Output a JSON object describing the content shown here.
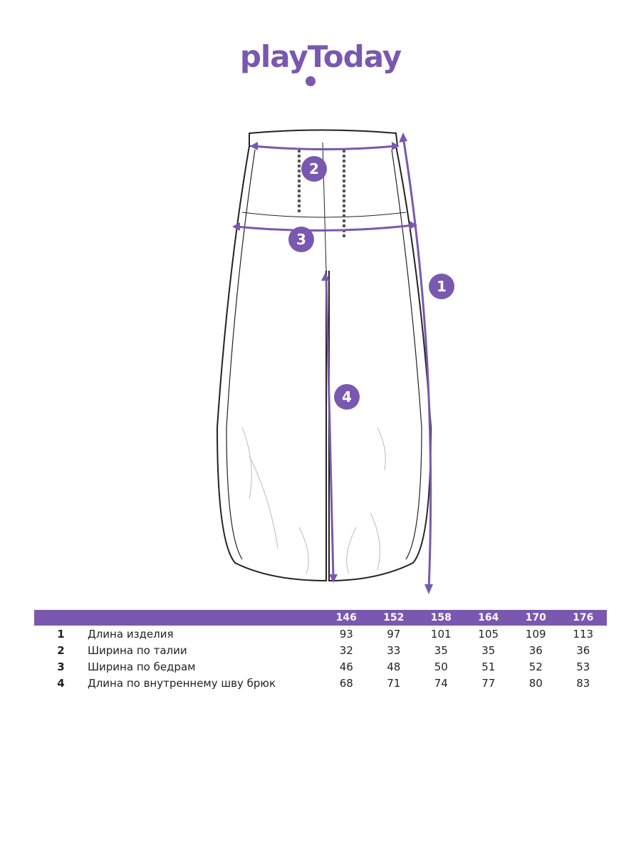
{
  "brand": {
    "logo_text": "playToday",
    "color": "#7a58b0"
  },
  "diagram": {
    "markers": [
      "1",
      "2",
      "3",
      "4"
    ]
  },
  "size_table": {
    "header_color": "#7a58b0",
    "sizes": [
      "146",
      "152",
      "158",
      "164",
      "170",
      "176"
    ],
    "rows": [
      {
        "num": "1",
        "label": "Длина изделия",
        "values": [
          "93",
          "97",
          "101",
          "105",
          "109",
          "113"
        ]
      },
      {
        "num": "2",
        "label": "Ширина по талии",
        "values": [
          "32",
          "33",
          "35",
          "35",
          "36",
          "36"
        ]
      },
      {
        "num": "3",
        "label": "Ширина по бедрам",
        "values": [
          "46",
          "48",
          "50",
          "51",
          "52",
          "53"
        ]
      },
      {
        "num": "4",
        "label": "Длина по внутреннему шву брюк",
        "values": [
          "68",
          "71",
          "74",
          "77",
          "80",
          "83"
        ]
      }
    ]
  }
}
